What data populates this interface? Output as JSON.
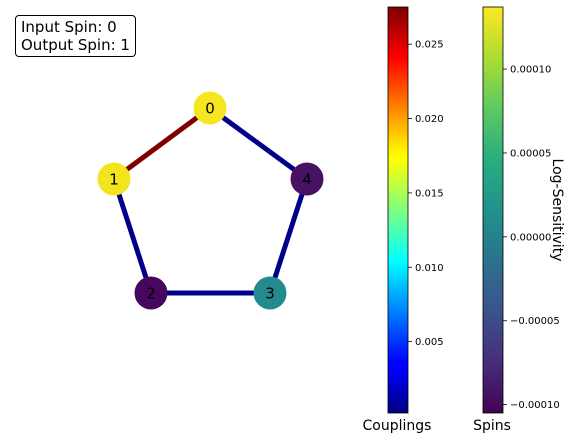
{
  "info": {
    "input_line": "Input Spin: 0",
    "output_line": "Output Spin: 1"
  },
  "graph": {
    "nodes": [
      {
        "label": "0",
        "color": "#f6e620"
      },
      {
        "label": "1",
        "color": "#f2e51d"
      },
      {
        "label": "2",
        "color": "#46085c"
      },
      {
        "label": "3",
        "color": "#238a8d"
      },
      {
        "label": "4",
        "color": "#471164"
      }
    ],
    "edges": [
      {
        "from": 0,
        "to": 1,
        "color": "#800000"
      },
      {
        "from": 1,
        "to": 2,
        "color": "#00008b"
      },
      {
        "from": 2,
        "to": 3,
        "color": "#00008b"
      },
      {
        "from": 3,
        "to": 4,
        "color": "#00008b"
      },
      {
        "from": 4,
        "to": 0,
        "color": "#00008b"
      }
    ]
  },
  "colorbar_couplings": {
    "label": "Couplings",
    "colormap": "jet",
    "range": [
      0.0002,
      0.0275
    ],
    "ticks": [
      "0.005",
      "0.010",
      "0.015",
      "0.020",
      "0.025"
    ]
  },
  "colorbar_spins": {
    "label": "Spins",
    "side_label": "Log-Sensitivity",
    "colormap": "viridis",
    "range": [
      -0.000105,
      0.000137
    ],
    "ticks": [
      "−0.00010",
      "−0.00005",
      "0.00000",
      "0.00005",
      "0.00010"
    ]
  }
}
